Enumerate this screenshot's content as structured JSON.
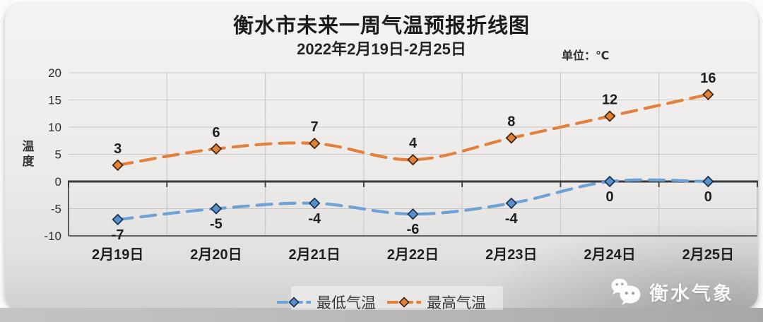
{
  "header": {
    "title": "衡水市未来一周气温预报折线图",
    "subtitle": "2022年2月19日-2月25日",
    "unit_label": "单位：℃"
  },
  "y_axis_title": "温度",
  "chart_data": {
    "type": "line",
    "title": "衡水市未来一周气温预报折线图",
    "subtitle": "2022年2月19日-2月25日",
    "unit": "℃",
    "categories": [
      "2月19日",
      "2月20日",
      "2月21日",
      "2月22日",
      "2月23日",
      "2月24日",
      "2月25日"
    ],
    "series": [
      {
        "name": "最低气温",
        "values": [
          -7,
          -5,
          -4,
          -6,
          -4,
          0,
          0
        ],
        "color": "#6ea2d5",
        "marker_fill": "#5b8fc9",
        "marker_stroke": "#17314d",
        "label_position": "below"
      },
      {
        "name": "最高气温",
        "values": [
          3,
          6,
          7,
          4,
          8,
          12,
          16
        ],
        "color": "#e2803c",
        "marker_fill": "#e08136",
        "marker_stroke": "#3d2410",
        "label_position": "above"
      }
    ],
    "ylim": [
      -10,
      20
    ],
    "yticks": [
      20,
      15,
      10,
      5,
      0,
      -5,
      -10
    ],
    "ylabel": "温度",
    "xlabel": "",
    "grid": true,
    "line_style": "dashed",
    "marker": "diamond",
    "legend_position": "bottom"
  },
  "watermark": {
    "icon": "wechat-icon",
    "text": "衡水气象"
  }
}
